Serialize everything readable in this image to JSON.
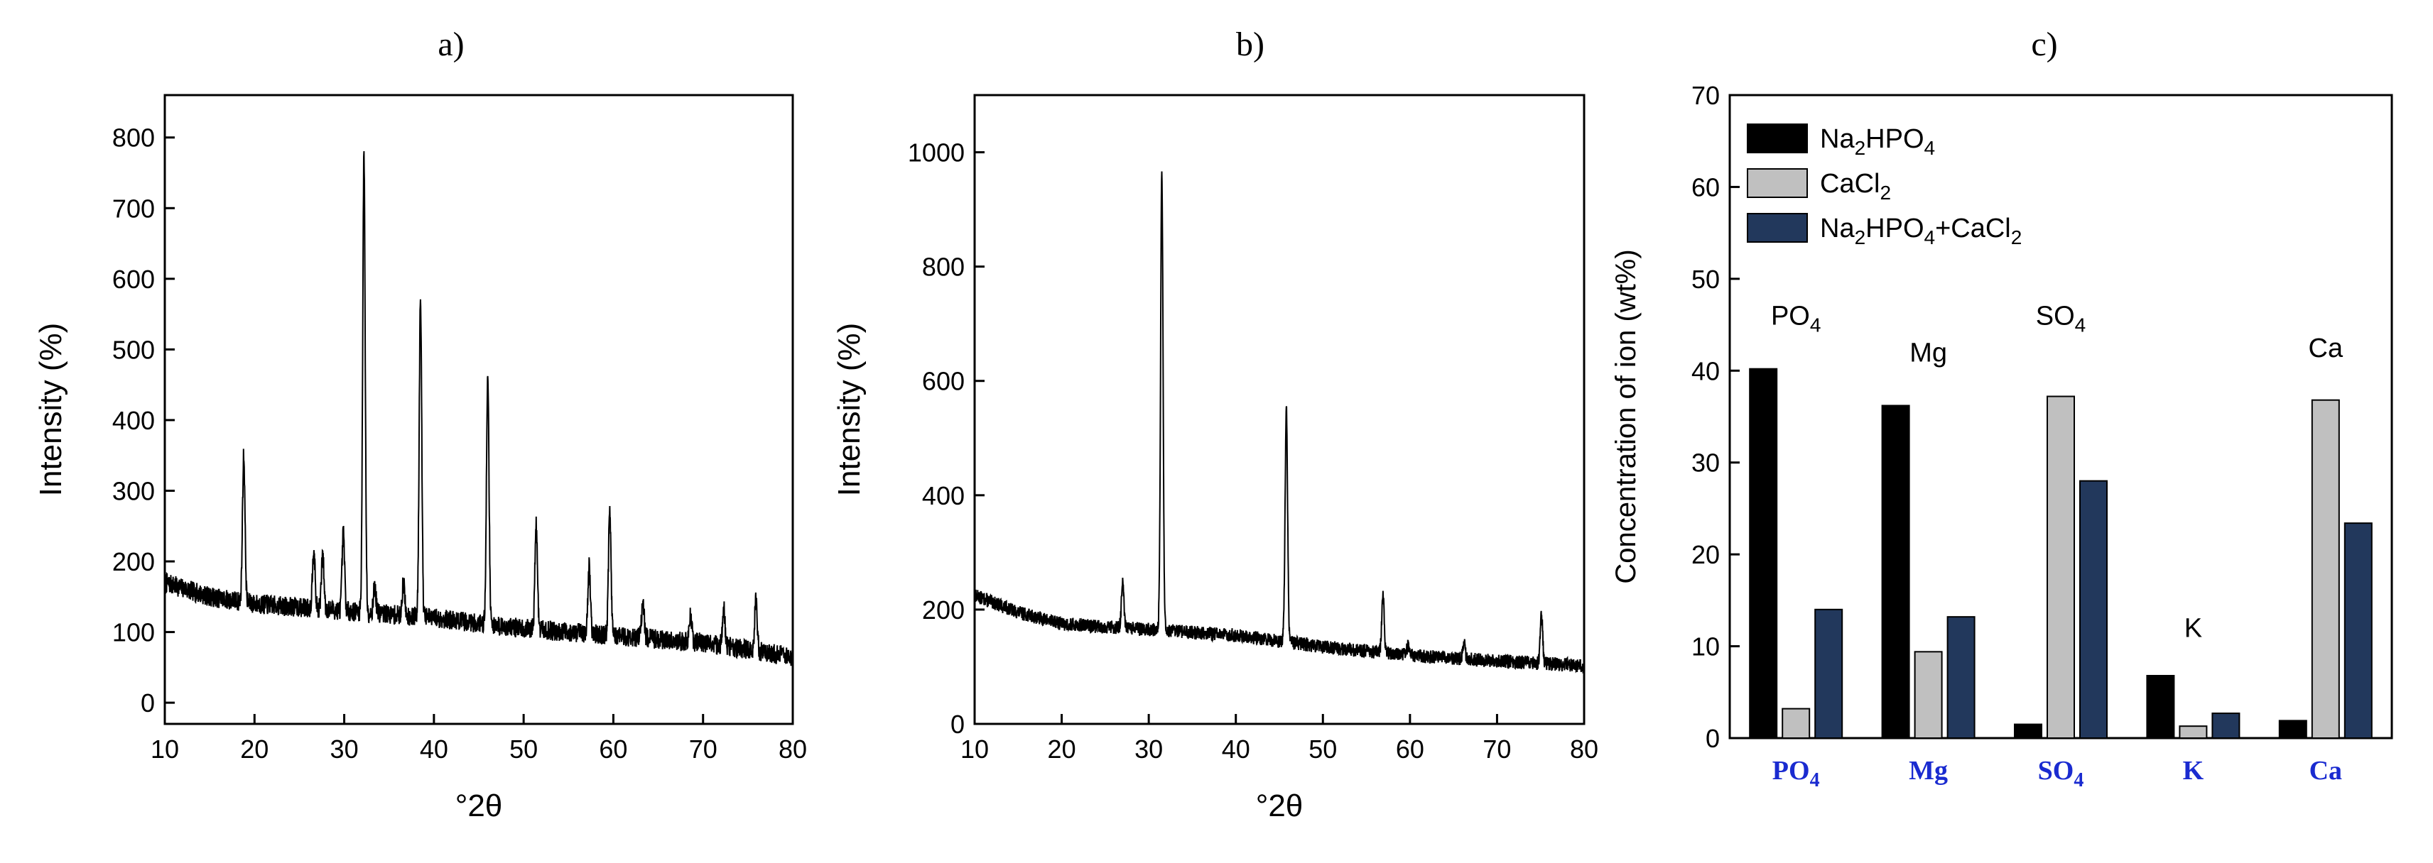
{
  "panels": {
    "a": {
      "label": "a)",
      "chart_data": {
        "type": "line",
        "xlabel": "°2θ",
        "ylabel": "Intensity (%)",
        "xlim": [
          10,
          80
        ],
        "ylim": [
          -30,
          860
        ],
        "xticks": [
          10,
          20,
          30,
          40,
          50,
          60,
          70,
          80
        ],
        "yticks": [
          0,
          100,
          200,
          300,
          400,
          500,
          600,
          700,
          800
        ],
        "grid": false,
        "baseline": [
          [
            10,
            170
          ],
          [
            15,
            150
          ],
          [
            20,
            140
          ],
          [
            30,
            130
          ],
          [
            40,
            120
          ],
          [
            50,
            105
          ],
          [
            60,
            95
          ],
          [
            70,
            85
          ],
          [
            80,
            65
          ]
        ],
        "peaks": [
          {
            "x": 18.8,
            "y": 350
          },
          {
            "x": 26.6,
            "y": 220
          },
          {
            "x": 27.6,
            "y": 210
          },
          {
            "x": 29.9,
            "y": 240
          },
          {
            "x": 32.2,
            "y": 770
          },
          {
            "x": 33.4,
            "y": 165
          },
          {
            "x": 36.6,
            "y": 170
          },
          {
            "x": 38.5,
            "y": 580
          },
          {
            "x": 46.0,
            "y": 465
          },
          {
            "x": 51.4,
            "y": 252
          },
          {
            "x": 57.3,
            "y": 192
          },
          {
            "x": 59.6,
            "y": 272
          },
          {
            "x": 63.3,
            "y": 145
          },
          {
            "x": 68.6,
            "y": 125
          },
          {
            "x": 72.3,
            "y": 135
          },
          {
            "x": 75.9,
            "y": 148
          }
        ]
      }
    },
    "b": {
      "label": "b)",
      "chart_data": {
        "type": "line",
        "xlabel": "°2θ",
        "ylabel": "Intensity (%)",
        "xlim": [
          10,
          80
        ],
        "ylim": [
          0,
          1100
        ],
        "xticks": [
          10,
          20,
          30,
          40,
          50,
          60,
          70,
          80
        ],
        "yticks": [
          0,
          200,
          400,
          600,
          800,
          1000
        ],
        "grid": false,
        "baseline": [
          [
            10,
            225
          ],
          [
            15,
            195
          ],
          [
            20,
            175
          ],
          [
            30,
            165
          ],
          [
            40,
            155
          ],
          [
            50,
            135
          ],
          [
            60,
            120
          ],
          [
            70,
            110
          ],
          [
            80,
            102
          ]
        ],
        "peaks": [
          {
            "x": 27.0,
            "y": 245
          },
          {
            "x": 31.5,
            "y": 960
          },
          {
            "x": 45.8,
            "y": 555
          },
          {
            "x": 56.9,
            "y": 222
          },
          {
            "x": 59.8,
            "y": 138
          },
          {
            "x": 66.2,
            "y": 142
          },
          {
            "x": 75.1,
            "y": 190
          }
        ]
      }
    },
    "c": {
      "label": "c)",
      "chart_data": {
        "type": "bar",
        "ylabel": "Concentration of ion (wt%)",
        "ylim": [
          0,
          70
        ],
        "yticks": [
          0,
          10,
          20,
          30,
          40,
          50,
          60,
          70
        ],
        "categories": [
          {
            "main": "PO",
            "sub": "4"
          },
          {
            "main": "Mg",
            "sub": ""
          },
          {
            "main": "SO",
            "sub": "4"
          },
          {
            "main": "K",
            "sub": ""
          },
          {
            "main": "Ca",
            "sub": ""
          }
        ],
        "series": [
          {
            "name_parts": [
              [
                "Na",
                ""
              ],
              [
                "2",
                "sub"
              ],
              [
                "HPO",
                ""
              ],
              [
                "4",
                "sub"
              ]
            ],
            "color": "#000000",
            "values": [
              40.2,
              36.2,
              1.5,
              6.8,
              1.9
            ]
          },
          {
            "name_parts": [
              [
                "CaCl",
                ""
              ],
              [
                "2",
                "sub"
              ]
            ],
            "color": "#c0c0c0",
            "values": [
              3.2,
              9.4,
              37.2,
              1.3,
              36.8
            ]
          },
          {
            "name_parts": [
              [
                "Na",
                ""
              ],
              [
                "2",
                "sub"
              ],
              [
                "HPO",
                ""
              ],
              [
                "4",
                "sub"
              ],
              [
                "+CaCl",
                ""
              ],
              [
                "2",
                "sub"
              ]
            ],
            "color": "#22385c",
            "values": [
              14.0,
              13.2,
              28.0,
              2.7,
              23.4
            ]
          }
        ],
        "annotations": [
          {
            "main": "PO",
            "sub": "4",
            "x_index": 0,
            "y": 45
          },
          {
            "main": "Mg",
            "sub": "",
            "x_index": 1,
            "y": 41
          },
          {
            "main": "SO",
            "sub": "4",
            "x_index": 2,
            "y": 45
          },
          {
            "main": "K",
            "sub": "",
            "x_index": 3,
            "y": 11
          },
          {
            "main": "Ca",
            "sub": "",
            "x_index": 4,
            "y": 41.5
          }
        ],
        "category_label_color": "#1a2bd0",
        "legend_position": "top-left",
        "grid": false
      }
    }
  }
}
